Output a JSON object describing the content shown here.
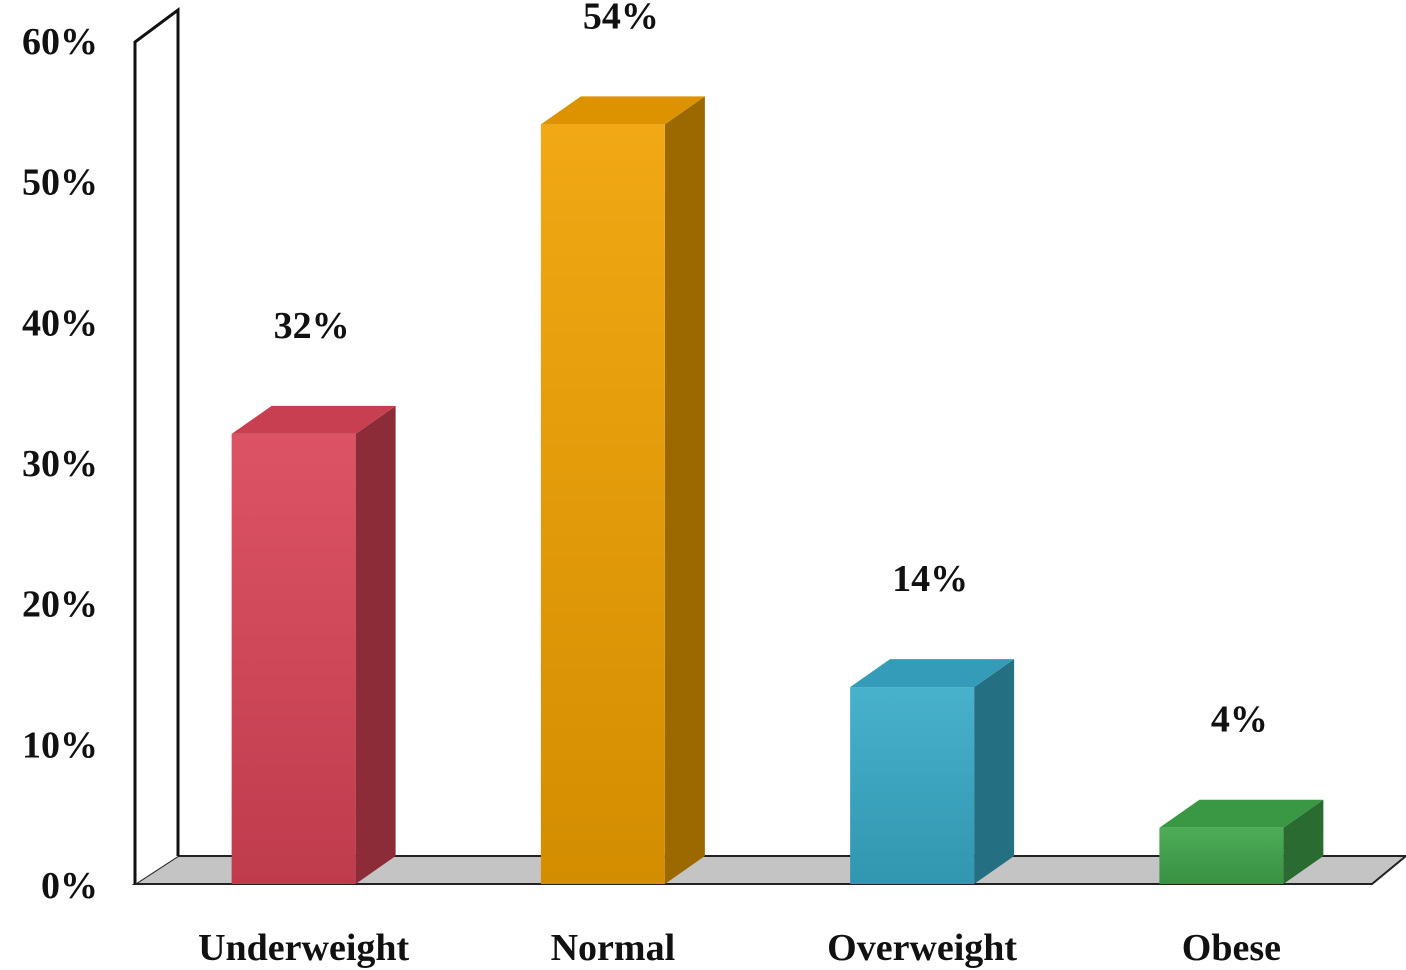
{
  "chart_data": {
    "type": "bar",
    "style": "3d",
    "categories": [
      "Underweight",
      "Normal",
      "Overweight",
      "Obese"
    ],
    "values": [
      32,
      54,
      14,
      4
    ],
    "value_labels": [
      "32%",
      "54%",
      "14%",
      "4%"
    ],
    "ylim": [
      0,
      60
    ],
    "yticks": [
      0,
      10,
      20,
      30,
      40,
      50,
      60
    ],
    "ytick_labels": [
      "0%",
      "10%",
      "20%",
      "30%",
      "40%",
      "50%",
      "60%"
    ],
    "colors": [
      "#d94458",
      "#f0a000",
      "#38aac8",
      "#3fa54a"
    ],
    "grid": false,
    "legend": "none",
    "title": "",
    "xlabel": "",
    "ylabel": ""
  }
}
